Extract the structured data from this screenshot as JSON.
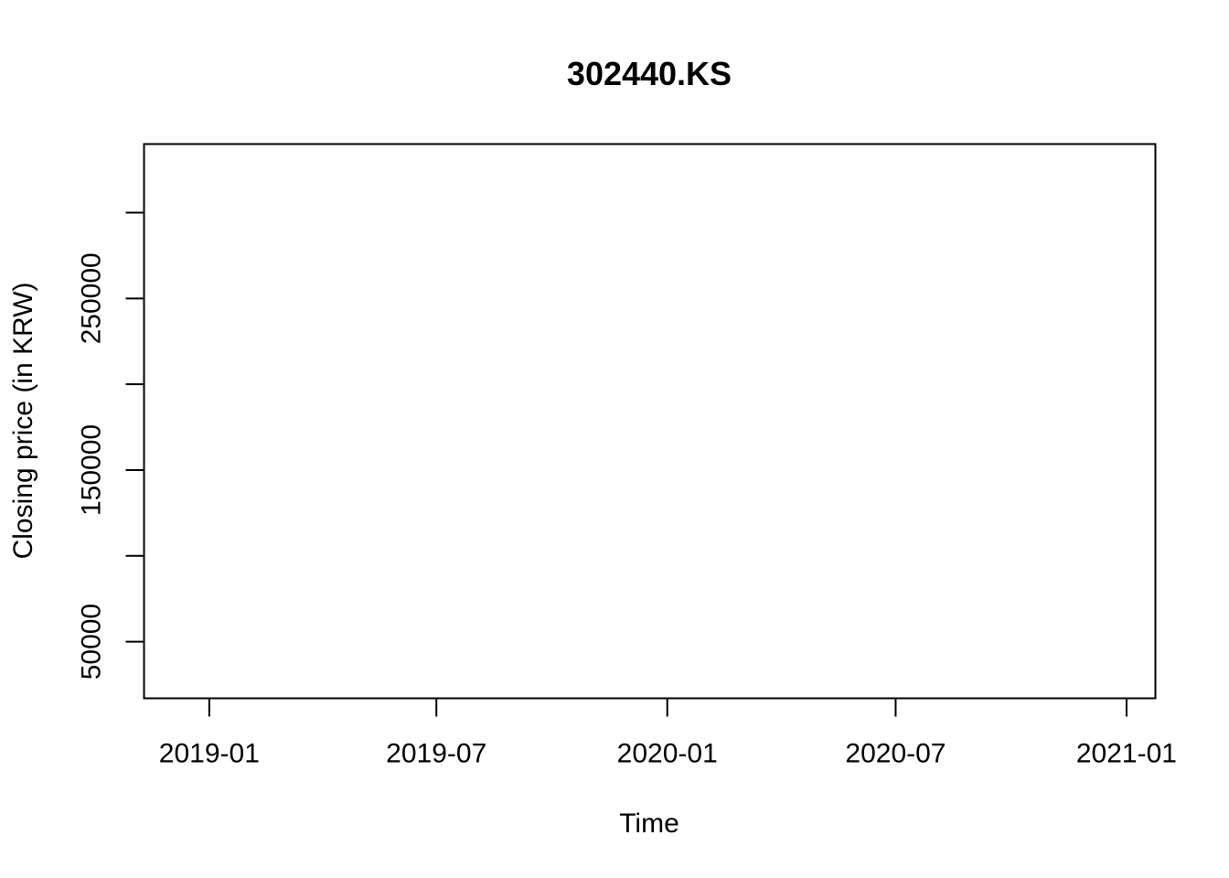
{
  "chart_data": {
    "type": "line",
    "title": "302440.KS",
    "xlabel": "Time",
    "ylabel": "Closing price (in KRW)",
    "x_axis_type": "date",
    "xlim": [
      "2018-11-10",
      "2021-01-24"
    ],
    "ylim": [
      17000,
      340000
    ],
    "x_ticks": [
      "2019-01",
      "2019-07",
      "2020-01",
      "2020-07",
      "2021-01"
    ],
    "x_tick_dates": [
      "2019-01-01",
      "2019-07-01",
      "2020-01-01",
      "2020-07-01",
      "2021-01-01"
    ],
    "y_ticks": [
      50000,
      100000,
      150000,
      200000,
      250000,
      300000
    ],
    "y_tick_labels": [
      "50000",
      "",
      "150000",
      "",
      "250000",
      ""
    ],
    "grid": false,
    "legend": "none",
    "series": [
      {
        "x": [],
        "y": []
      }
    ]
  }
}
